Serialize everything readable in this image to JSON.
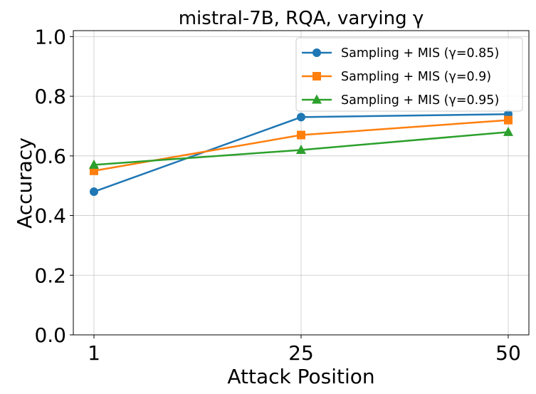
{
  "chart_data": {
    "type": "line",
    "title": "mistral-7B, RQA, varying γ",
    "xlabel": "Attack Position",
    "ylabel": "Accuracy",
    "categories": [
      "1",
      "25",
      "50"
    ],
    "x": [
      1,
      25,
      50
    ],
    "ylim": [
      0.0,
      1.02
    ],
    "yticks": [
      "0.0",
      "0.2",
      "0.4",
      "0.6",
      "0.8",
      "1.0"
    ],
    "grid": true,
    "legend_position": "top-right",
    "series": [
      {
        "name": "Sampling + MIS (γ=0.85)",
        "values": [
          0.48,
          0.73,
          0.74
        ],
        "color": "#1f77b4",
        "marker": "circle"
      },
      {
        "name": "Sampling + MIS (γ=0.9)",
        "values": [
          0.55,
          0.67,
          0.72
        ],
        "color": "#ff7f0e",
        "marker": "square"
      },
      {
        "name": "Sampling + MIS (γ=0.95)",
        "values": [
          0.57,
          0.62,
          0.68
        ],
        "color": "#2ca02c",
        "marker": "triangle"
      }
    ]
  }
}
